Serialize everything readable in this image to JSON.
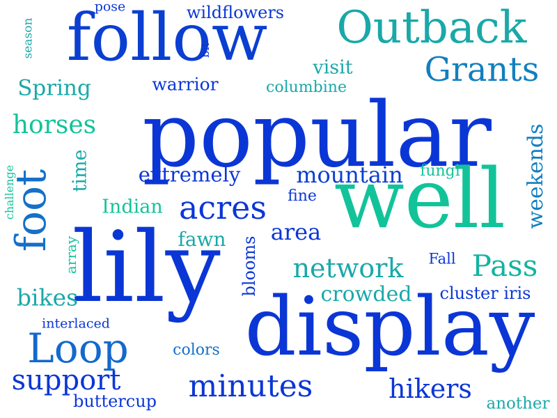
{
  "words": [
    {
      "text": "popular",
      "color": "#0b36d6"
    },
    {
      "text": "well",
      "color": "#12c39a"
    },
    {
      "text": "lily",
      "color": "#0b36d6"
    },
    {
      "text": "display",
      "color": "#0b36d6"
    },
    {
      "text": "follow",
      "color": "#0b3fd1"
    },
    {
      "text": "Outback",
      "color": "#1aa8a8"
    },
    {
      "text": "Grants",
      "color": "#127fbf"
    },
    {
      "text": "foot",
      "color": "#1470c9"
    },
    {
      "text": "Loop",
      "color": "#1369cc"
    },
    {
      "text": "acres",
      "color": "#0b36d6"
    },
    {
      "text": "minutes",
      "color": "#0b36d6"
    },
    {
      "text": "support",
      "color": "#0b36d6"
    },
    {
      "text": "hikers",
      "color": "#0b36d6"
    },
    {
      "text": "Pass",
      "color": "#12b4a0"
    },
    {
      "text": "network",
      "color": "#1aa8a8"
    },
    {
      "text": "mountain",
      "color": "#0b3fd1"
    },
    {
      "text": "extremely",
      "color": "#0b36d6"
    },
    {
      "text": "horses",
      "color": "#12c39a"
    },
    {
      "text": "bikes",
      "color": "#1aa8a8"
    },
    {
      "text": "area",
      "color": "#0b36d6"
    },
    {
      "text": "crowded",
      "color": "#1aa8a8"
    },
    {
      "text": "weekends",
      "color": "#127fbf"
    },
    {
      "text": "wildflowers",
      "color": "#0b36d6"
    },
    {
      "text": "visit",
      "color": "#1aa8a8"
    },
    {
      "text": "Spring",
      "color": "#1aa8a8"
    },
    {
      "text": "warrior",
      "color": "#0b36d6"
    },
    {
      "text": "columbine",
      "color": "#1aa8a8"
    },
    {
      "text": "time",
      "color": "#1aa8a8"
    },
    {
      "text": "Indian",
      "color": "#12c39a"
    },
    {
      "text": "fawn",
      "color": "#1aa8a8"
    },
    {
      "text": "blooms",
      "color": "#0b36d6"
    },
    {
      "text": "Fall",
      "color": "#0b36d6"
    },
    {
      "text": "cluster iris",
      "color": "#0b36d6"
    },
    {
      "text": "fine",
      "color": "#0b36d6"
    },
    {
      "text": "fungi",
      "color": "#12c39a"
    },
    {
      "text": "colors",
      "color": "#1470c9"
    },
    {
      "text": "interlaced",
      "color": "#0b36d6"
    },
    {
      "text": "buttercup",
      "color": "#0b36d6"
    },
    {
      "text": "another",
      "color": "#1aa8a8"
    },
    {
      "text": "array",
      "color": "#12c39a"
    },
    {
      "text": "challenge",
      "color": "#12c39a"
    },
    {
      "text": "season",
      "color": "#1aa8a8"
    },
    {
      "text": "pose",
      "color": "#0b36d6"
    },
    {
      "text": "bit",
      "color": "#0b36d6"
    }
  ]
}
